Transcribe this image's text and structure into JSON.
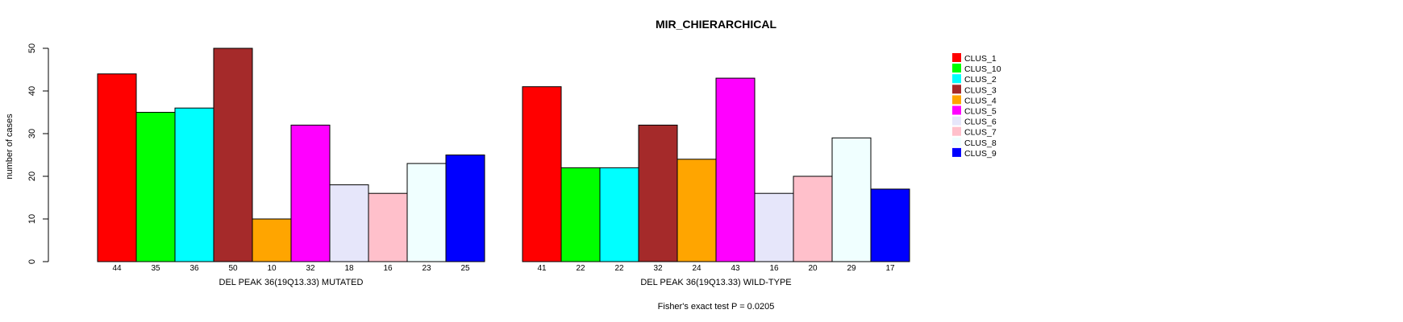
{
  "chart_data": {
    "type": "bar",
    "title": "MIR_CHIERARCHICAL",
    "ylabel": "number of cases",
    "ylim": [
      0,
      50
    ],
    "yticks": [
      0,
      10,
      20,
      30,
      40,
      50
    ],
    "footer": "Fisher's exact test P = 0.0205",
    "clusters": [
      "CLUS_1",
      "CLUS_10",
      "CLUS_2",
      "CLUS_3",
      "CLUS_4",
      "CLUS_5",
      "CLUS_6",
      "CLUS_7",
      "CLUS_8",
      "CLUS_9"
    ],
    "colors": [
      "#FF0000",
      "#00FF00",
      "#00FFFF",
      "#A52A2A",
      "#FFA500",
      "#FF00FF",
      "#E6E6FA",
      "#FFC0CB",
      "#F0FFFF",
      "#0000FF"
    ],
    "groups": [
      {
        "name": "DEL PEAK 36(19Q13.33) MUTATED",
        "values": [
          44,
          35,
          36,
          50,
          10,
          32,
          18,
          16,
          23,
          25
        ]
      },
      {
        "name": "DEL PEAK 36(19Q13.33) WILD-TYPE",
        "values": [
          41,
          22,
          22,
          32,
          24,
          43,
          16,
          20,
          29,
          17
        ]
      }
    ],
    "legend": {
      "position": "top-right",
      "labels": [
        "CLUS_1",
        "CLUS_10",
        "CLUS_2",
        "CLUS_3",
        "CLUS_4",
        "CLUS_5",
        "CLUS_6",
        "CLUS_7",
        "CLUS_8",
        "CLUS_9"
      ]
    }
  }
}
